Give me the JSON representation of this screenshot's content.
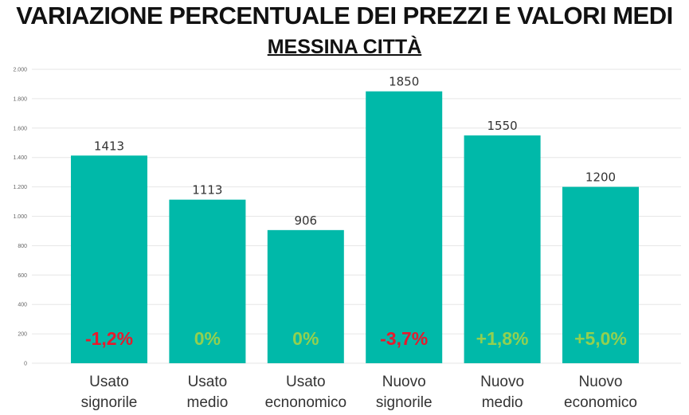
{
  "header": {
    "title": "VARIAZIONE PERCENTUALE DEI PREZZI E VALORI MEDI",
    "subtitle": "MESSINA CITTÀ"
  },
  "colors": {
    "bar": "#00B9A9",
    "negative": "#E8192C",
    "positive": "#92D050",
    "grid": "#E6E6E6"
  },
  "chart_data": {
    "type": "bar",
    "categories": [
      [
        "Usato",
        "signorile"
      ],
      [
        "Usato",
        "medio"
      ],
      [
        "Usato",
        "ecnonomico"
      ],
      [
        "Nuovo",
        "signorile"
      ],
      [
        "Nuovo",
        "medio"
      ],
      [
        "Nuovo",
        "economico"
      ]
    ],
    "values": [
      1413,
      1113,
      906,
      1850,
      1550,
      1200
    ],
    "data_labels": [
      "1413",
      "1113",
      "906",
      "1850",
      "1550",
      "1200"
    ],
    "percent_changes": [
      "-1,2%",
      "0%",
      "0%",
      "-3,7%",
      "+1,8%",
      "+5,0%"
    ],
    "percent_change_colors": [
      "negative",
      "positive",
      "positive",
      "negative",
      "positive",
      "positive"
    ],
    "ylim": [
      0,
      2000
    ],
    "yticks": [
      0,
      200,
      400,
      600,
      800,
      1000,
      1200,
      1400,
      1600,
      1800,
      2000
    ],
    "ytick_labels": [
      "0",
      "200",
      "400",
      "600",
      "800",
      "1.000",
      "1.200",
      "1.400",
      "1.600",
      "1.800",
      "2.000"
    ],
    "grid": true
  }
}
